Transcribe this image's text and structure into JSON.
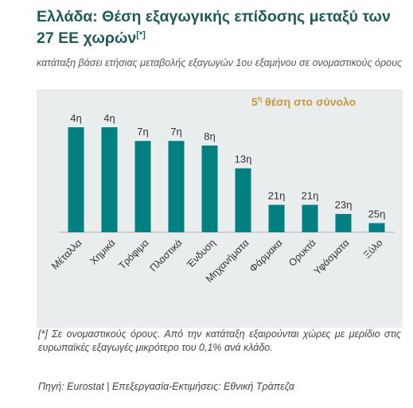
{
  "header": {
    "title": "Ελλάδα: Θέση εξαγωγικής επίδοσης μεταξύ των 27 ΕΕ χωρών",
    "title_note": "[*]",
    "subtitle": "κατάταξη βάσει ετήσιας μεταβολής εξαγωγών 1ου εξαμήνου σε ονομαστικούς όρους"
  },
  "colors": {
    "bar": "#008080",
    "panel": "#e9edee",
    "annotation": "#c8963a",
    "title": "#1f5a55"
  },
  "chart_data": {
    "type": "bar",
    "categories": [
      "Μέταλλα",
      "Χημικά",
      "Τρόφιμα",
      "Πλαστικά",
      "Ένδυση",
      "Μηχανήματα",
      "Φάρμακα",
      "Ορυκτά",
      "Υφάσματα",
      "Ξύλο"
    ],
    "values": [
      4,
      4,
      7,
      7,
      8,
      13,
      21,
      21,
      23,
      25
    ],
    "data_labels": [
      "4η",
      "4η",
      "7η",
      "7η",
      "8η",
      "13η",
      "21η",
      "21η",
      "23η",
      "25η"
    ],
    "inverted_rank_max": 27,
    "annotation": {
      "base": "5",
      "sup": "η",
      "rest": " θέση στο σύνολο"
    },
    "title": "",
    "xlabel": "",
    "ylabel": "",
    "grid": false,
    "legend": "none"
  },
  "footer": {
    "note": "[*] Σε ονομαστικούς όρους. Από την κατάταξη εξαιρούνται χώρες με μερίδιο στις ευρωπαϊκές εξαγωγές μικρότερο του 0,1% ανά κλάδο.",
    "source": "Πηγή: Eurostat | Επεξεργασία-Εκτιμήσεις: Εθνική Τράπεζα"
  }
}
